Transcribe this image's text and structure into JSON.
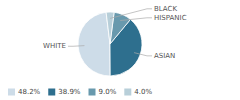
{
  "chart_data": {
    "type": "pie",
    "categories": [
      "WHITE",
      "ASIAN",
      "HISPANIC",
      "BLACK"
    ],
    "values": [
      48.2,
      38.9,
      9.0,
      4.0
    ],
    "value_labels": [
      "48.2%",
      "38.9%",
      "9.0%",
      "4.0%"
    ],
    "colors": [
      "#cddce8",
      "#2e6f8e",
      "#6899ad",
      "#b8cfd9"
    ],
    "legend": "bottom"
  }
}
